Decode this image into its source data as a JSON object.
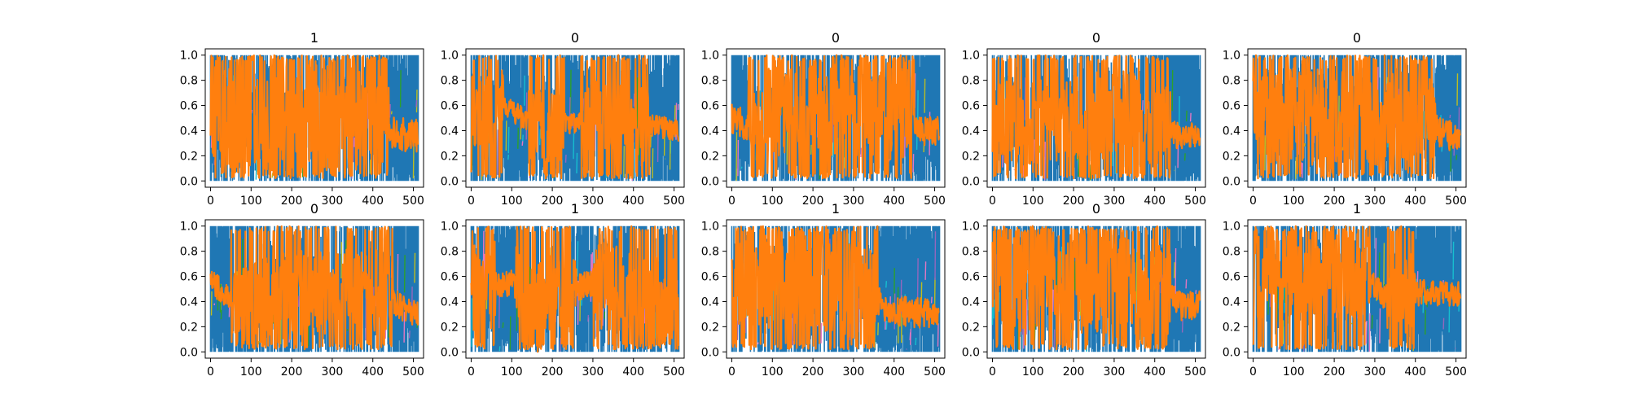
{
  "chart_data": {
    "type": "line",
    "xlim": [
      -13,
      525
    ],
    "ylim": [
      -0.05,
      1.05
    ],
    "x_ticks": [
      "0",
      "100",
      "200",
      "300",
      "400",
      "500"
    ],
    "y_ticks": [
      "0.0",
      "0.2",
      "0.4",
      "0.6",
      "0.8",
      "1.0"
    ],
    "grid": false,
    "legend": "none",
    "series_colors": {
      "primary": "#ff7f0e",
      "secondary": "#1f77b4",
      "minor": [
        "#17becf",
        "#bcbd22",
        "#2ca02c",
        "#9467bd",
        "#e377c2"
      ]
    },
    "x_count": 512,
    "panels": [
      {
        "title": "1",
        "orange_mid": [
          [
            0,
            0.55
          ],
          [
            100,
            0.55
          ],
          [
            220,
            0.5
          ],
          [
            300,
            0.5
          ],
          [
            400,
            0.55
          ],
          [
            440,
            0.38
          ],
          [
            512,
            0.36
          ]
        ],
        "orange_spread": 0.45,
        "blue_spans": [
          [
            440,
            512
          ]
        ]
      },
      {
        "title": "0",
        "orange_mid": [
          [
            0,
            0.55
          ],
          [
            80,
            0.6
          ],
          [
            150,
            0.45
          ],
          [
            250,
            0.45
          ],
          [
            330,
            0.55
          ],
          [
            420,
            0.45
          ],
          [
            512,
            0.4
          ]
        ],
        "orange_spread": 0.3,
        "blue_spans": [
          [
            80,
            140
          ],
          [
            230,
            270
          ],
          [
            440,
            512
          ]
        ]
      },
      {
        "title": "0",
        "orange_mid": [
          [
            0,
            0.5
          ],
          [
            60,
            0.4
          ],
          [
            120,
            0.6
          ],
          [
            300,
            0.6
          ],
          [
            440,
            0.55
          ],
          [
            470,
            0.4
          ],
          [
            512,
            0.4
          ]
        ],
        "orange_spread": 0.4,
        "blue_spans": [
          [
            0,
            40
          ],
          [
            450,
            512
          ]
        ]
      },
      {
        "title": "0",
        "orange_mid": [
          [
            0,
            0.5
          ],
          [
            80,
            0.45
          ],
          [
            200,
            0.5
          ],
          [
            330,
            0.55
          ],
          [
            420,
            0.45
          ],
          [
            460,
            0.35
          ],
          [
            512,
            0.36
          ]
        ],
        "orange_spread": 0.35,
        "blue_spans": [
          [
            440,
            512
          ]
        ]
      },
      {
        "title": "0",
        "orange_mid": [
          [
            0,
            0.55
          ],
          [
            150,
            0.5
          ],
          [
            300,
            0.45
          ],
          [
            420,
            0.5
          ],
          [
            460,
            0.38
          ],
          [
            512,
            0.34
          ]
        ],
        "orange_spread": 0.4,
        "blue_spans": [
          [
            450,
            512
          ]
        ]
      },
      {
        "title": "0",
        "orange_mid": [
          [
            0,
            0.55
          ],
          [
            80,
            0.35
          ],
          [
            200,
            0.45
          ],
          [
            320,
            0.5
          ],
          [
            440,
            0.45
          ],
          [
            470,
            0.35
          ],
          [
            512,
            0.3
          ]
        ],
        "orange_spread": 0.35,
        "blue_spans": [
          [
            0,
            50
          ],
          [
            450,
            512
          ]
        ]
      },
      {
        "title": "1",
        "orange_mid": [
          [
            0,
            0.5
          ],
          [
            100,
            0.55
          ],
          [
            150,
            0.3
          ],
          [
            200,
            0.45
          ],
          [
            300,
            0.55
          ],
          [
            420,
            0.45
          ],
          [
            512,
            0.38
          ]
        ],
        "orange_spread": 0.35,
        "blue_spans": [
          [
            60,
            110
          ],
          [
            260,
            300
          ]
        ]
      },
      {
        "title": "1",
        "orange_mid": [
          [
            0,
            0.55
          ],
          [
            120,
            0.6
          ],
          [
            250,
            0.55
          ],
          [
            350,
            0.45
          ],
          [
            380,
            0.33
          ],
          [
            512,
            0.3
          ]
        ],
        "orange_spread": 0.4,
        "blue_spans": [
          [
            360,
            512
          ]
        ]
      },
      {
        "title": "0",
        "orange_mid": [
          [
            0,
            0.6
          ],
          [
            100,
            0.55
          ],
          [
            200,
            0.55
          ],
          [
            350,
            0.5
          ],
          [
            440,
            0.5
          ],
          [
            470,
            0.35
          ],
          [
            512,
            0.38
          ]
        ],
        "orange_spread": 0.4,
        "blue_spans": [
          [
            440,
            512
          ]
        ]
      },
      {
        "title": "1",
        "orange_mid": [
          [
            0,
            0.6
          ],
          [
            150,
            0.65
          ],
          [
            280,
            0.62
          ],
          [
            320,
            0.45
          ],
          [
            380,
            0.45
          ],
          [
            420,
            0.48
          ],
          [
            512,
            0.45
          ]
        ],
        "orange_spread": 0.35,
        "blue_spans": [
          [
            290,
            330
          ],
          [
            400,
            512
          ]
        ]
      }
    ]
  }
}
